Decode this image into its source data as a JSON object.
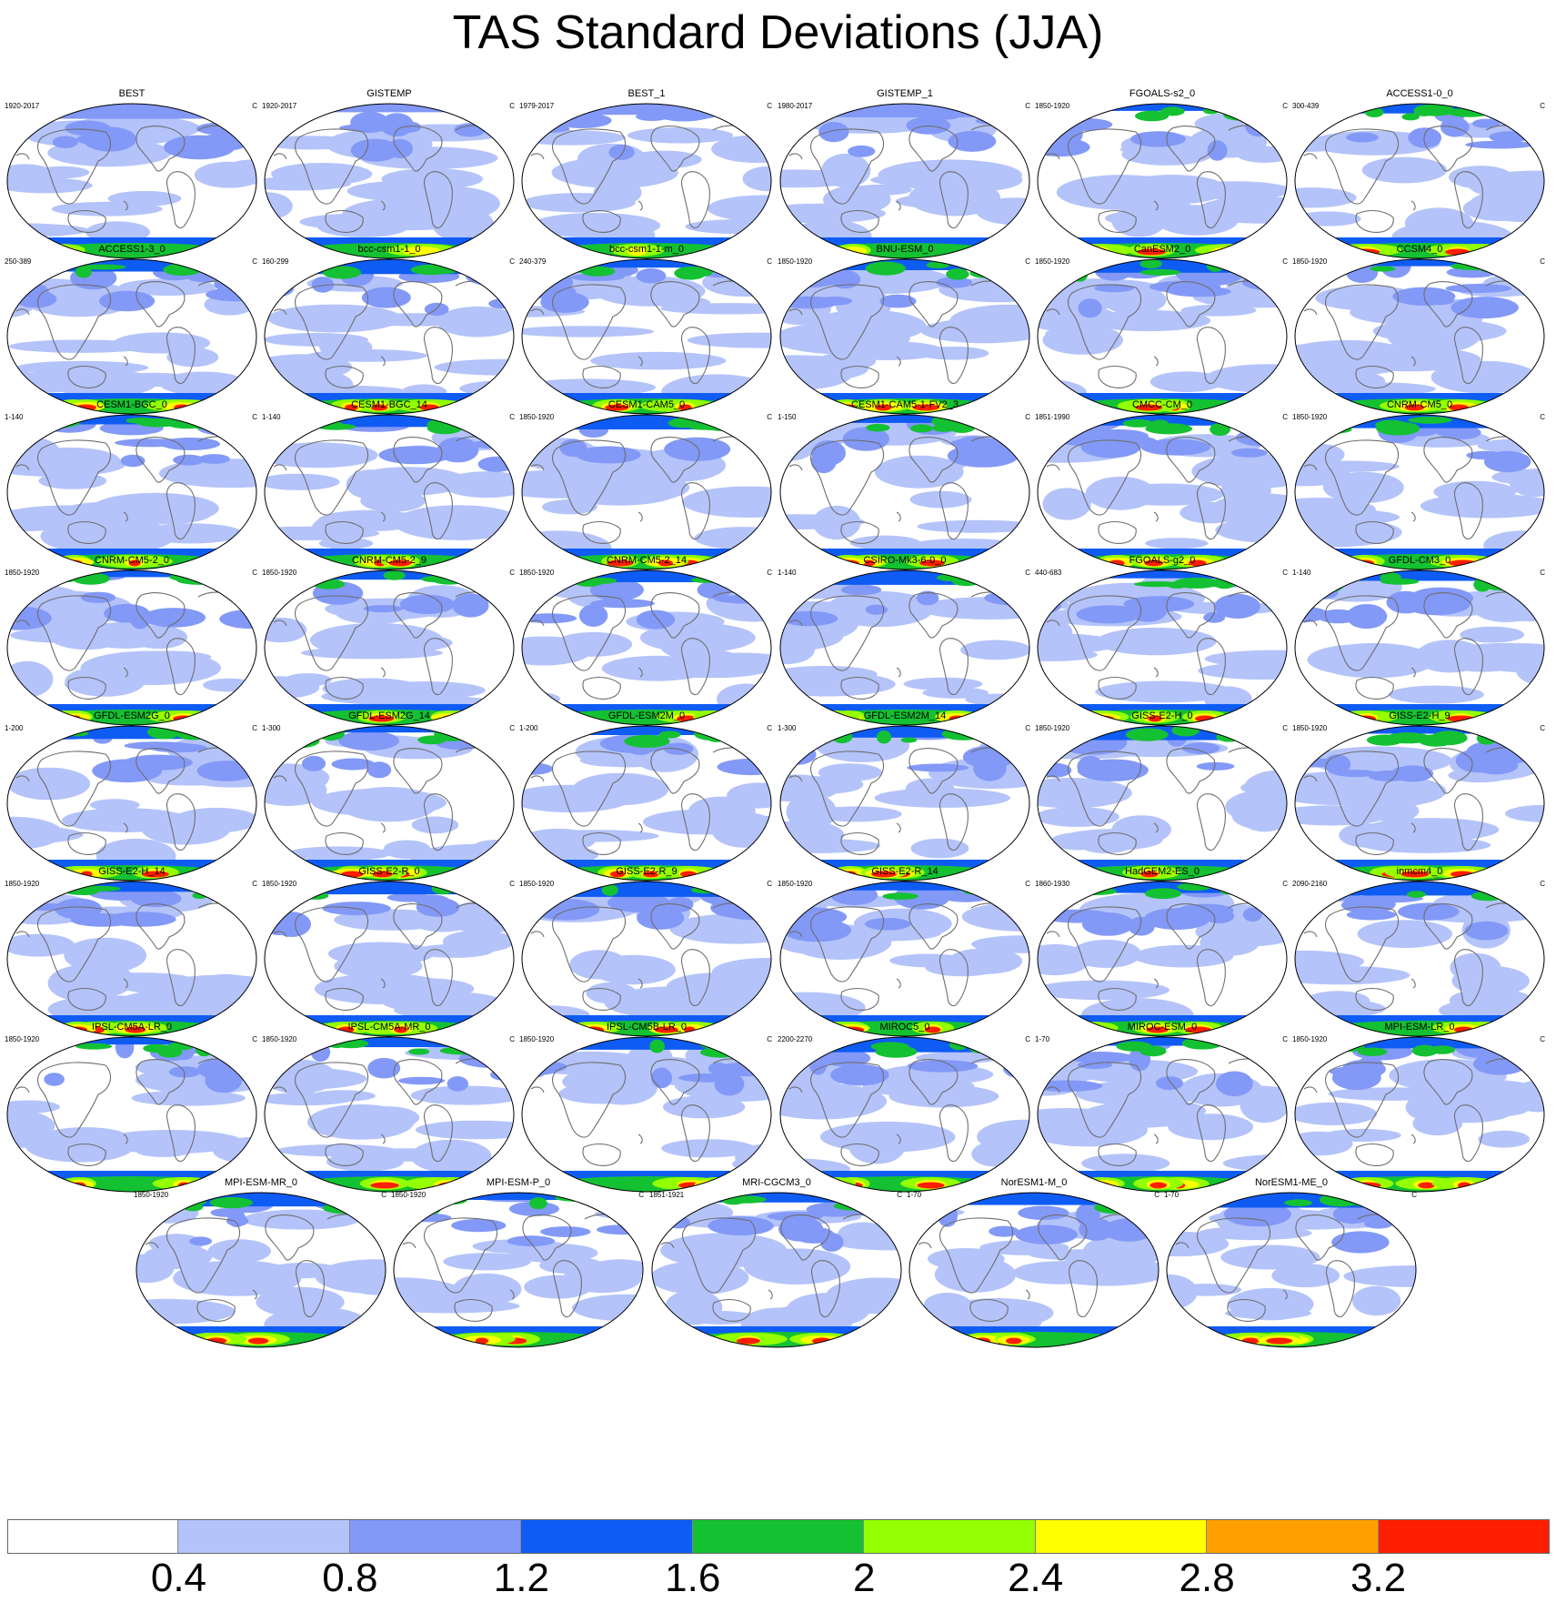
{
  "title": "TAS Standard Deviations (JJA)",
  "unit": "C",
  "colors": {
    "levels": [
      "#ffffff",
      "#b4c3f9",
      "#8399f7",
      "#0f5cf5",
      "#14c132",
      "#93ff00",
      "#ffff00",
      "#ffa000",
      "#ff1e00"
    ],
    "coast": "#6e6e6e"
  },
  "colorbar_labels": [
    "0.4",
    "0.8",
    "1.2",
    "1.6",
    "2",
    "2.4",
    "2.8",
    "3.2"
  ],
  "panels": [
    {
      "name": "BEST",
      "years": "1920-2017"
    },
    {
      "name": "GISTEMP",
      "years": "1920-2017"
    },
    {
      "name": "BEST_1",
      "years": "1979-2017"
    },
    {
      "name": "GISTEMP_1",
      "years": "1980-2017"
    },
    {
      "name": "FGOALS-s2_0",
      "years": "1850-1920"
    },
    {
      "name": "ACCESS1-0_0",
      "years": "300-439"
    },
    {
      "name": "ACCESS1-3_0",
      "years": "250-389"
    },
    {
      "name": "bcc-csm1-1_0",
      "years": "160-299"
    },
    {
      "name": "bcc-csm1-1-m_0",
      "years": "240-379"
    },
    {
      "name": "BNU-ESM_0",
      "years": "1850-1920"
    },
    {
      "name": "CanESM2_0",
      "years": "1850-1920"
    },
    {
      "name": "CCSM4_0",
      "years": "1850-1920"
    },
    {
      "name": "CESM1-BGC_0",
      "years": "1-140"
    },
    {
      "name": "CESM1-BGC_14",
      "years": "1-140"
    },
    {
      "name": "CESM1-CAM5_0",
      "years": "1850-1920"
    },
    {
      "name": "CESM1-CAM5-1-FV2_3",
      "years": "1-150"
    },
    {
      "name": "CMCC-CM_0",
      "years": "1851-1990"
    },
    {
      "name": "CNRM-CM5_0",
      "years": "1850-1920"
    },
    {
      "name": "CNRM-CM5-2_0",
      "years": "1850-1920"
    },
    {
      "name": "CNRM-CM5-2_9",
      "years": "1850-1920"
    },
    {
      "name": "CNRM-CM5-2_14",
      "years": "1850-1920"
    },
    {
      "name": "CSIRO-Mk3-6-0_0",
      "years": "1-140"
    },
    {
      "name": "FGOALS-g2_0",
      "years": "440-683"
    },
    {
      "name": "GFDL-CM3_0",
      "years": "1-140"
    },
    {
      "name": "GFDL-ESM2G_0",
      "years": "1-200"
    },
    {
      "name": "GFDL-ESM2G_14",
      "years": "1-300"
    },
    {
      "name": "GFDL-ESM2M_0",
      "years": "1-200"
    },
    {
      "name": "GFDL-ESM2M_14",
      "years": "1-300"
    },
    {
      "name": "GISS-E2-H_0",
      "years": "1850-1920"
    },
    {
      "name": "GISS-E2-H_9",
      "years": "1850-1920"
    },
    {
      "name": "GISS-E2-H_14",
      "years": "1850-1920"
    },
    {
      "name": "GISS-E2-R_0",
      "years": "1850-1920"
    },
    {
      "name": "GISS-E2-R_9",
      "years": "1850-1920"
    },
    {
      "name": "GISS-E2-R_14",
      "years": "1850-1920"
    },
    {
      "name": "HadGEM2-ES_0",
      "years": "1860-1930"
    },
    {
      "name": "inmcm4_0",
      "years": "2090-2160"
    },
    {
      "name": "IPSL-CM5A-LR_0",
      "years": "1850-1920"
    },
    {
      "name": "IPSL-CM5A-MR_0",
      "years": "1850-1920"
    },
    {
      "name": "IPSL-CM5B-LR_0",
      "years": "1850-1920"
    },
    {
      "name": "MIROC5_0",
      "years": "2200-2270"
    },
    {
      "name": "MIROC-ESM_0",
      "years": "1-70"
    },
    {
      "name": "MPI-ESM-LR_0",
      "years": "1850-1920"
    },
    {
      "name": "MPI-ESM-MR_0",
      "years": "1850-1920"
    },
    {
      "name": "MPI-ESM-P_0",
      "years": "1850-1920"
    },
    {
      "name": "MRI-CGCM3_0",
      "years": "1851-1921"
    },
    {
      "name": "NorESM1-M_0",
      "years": "1-70"
    },
    {
      "name": "NorESM1-ME_0",
      "years": "1-70"
    }
  ]
}
